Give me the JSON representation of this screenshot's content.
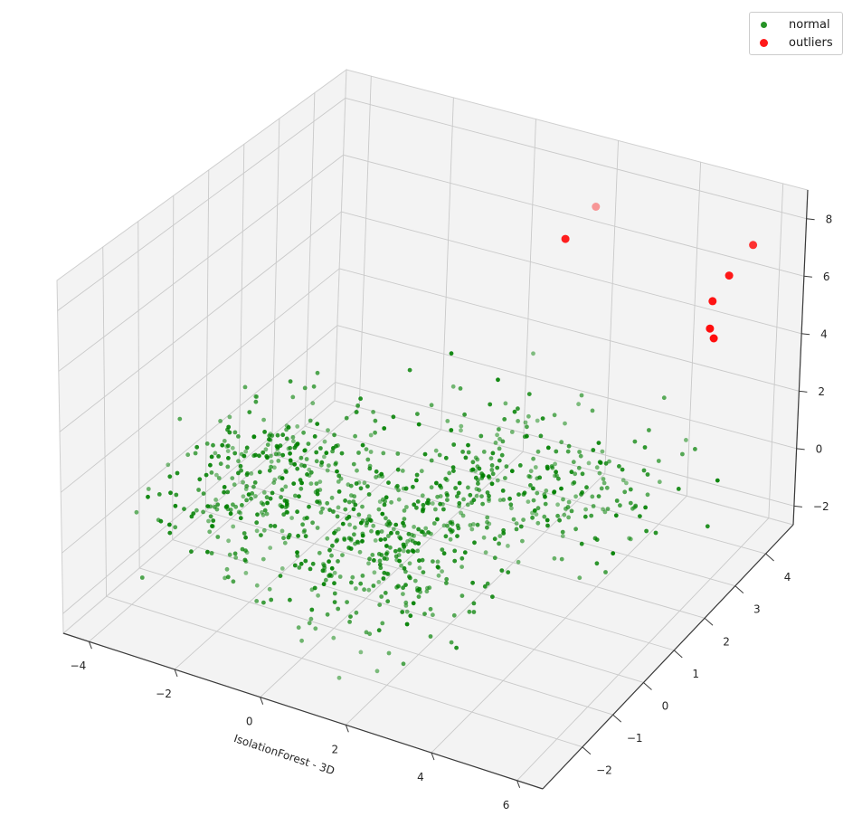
{
  "chart_data": {
    "type": "scatter",
    "subtype": "scatter3d",
    "title": "",
    "xlabel": "IsolationForest - 3D",
    "ylabel": "",
    "zlabel": "",
    "grid": true,
    "axes": {
      "x": {
        "label": "IsolationForest - 3D",
        "range": [
          -4.6,
          6.6
        ],
        "ticks": [
          -4,
          -2,
          0,
          2,
          4,
          6
        ]
      },
      "y": {
        "label": "",
        "range": [
          -3.3,
          4.9
        ],
        "ticks": [
          -2,
          -1,
          0,
          1,
          2,
          3,
          4
        ]
      },
      "z": {
        "label": "",
        "range": [
          -2.65,
          9.0
        ],
        "ticks": [
          -2,
          0,
          2,
          4,
          6,
          8
        ]
      }
    },
    "view": {
      "style": "matplotlib-3d",
      "elev_deg": 30,
      "azim_deg": -60
    },
    "legend": {
      "position": "upper right",
      "entries": [
        {
          "label": "normal",
          "color": "#008000"
        },
        {
          "label": "outliers",
          "color": "#ff0000"
        }
      ]
    },
    "series": [
      {
        "name": "normal",
        "color": "#008000",
        "marker_radius_px": 2.4,
        "count": 950,
        "distribution": {
          "kind": "gaussian_mixture",
          "seed": 1337,
          "clusters": [
            {
              "count": 300,
              "mean": [
                -2.6,
                0.4,
                0.2
              ],
              "std": [
                1.05,
                1.05,
                0.75
              ]
            },
            {
              "count": 380,
              "mean": [
                0.8,
                -0.4,
                -0.2
              ],
              "std": [
                1.2,
                1.1,
                0.8
              ]
            },
            {
              "count": 180,
              "mean": [
                1.4,
                2.2,
                0.2
              ],
              "std": [
                1.25,
                1.0,
                0.8
              ]
            },
            {
              "count": 90,
              "mean": [
                3.5,
                2.2,
                0.1
              ],
              "std": [
                1.1,
                0.9,
                0.7
              ]
            }
          ],
          "clip": {
            "x": [
              -4.5,
              6.5
            ],
            "y": [
              -3.15,
              4.8
            ],
            "z": [
              -2.55,
              8.9
            ]
          },
          "alpha_range": [
            0.45,
            0.95
          ]
        }
      },
      {
        "name": "outliers",
        "color": "#ff0000",
        "marker_radius_px": 4.5,
        "points": [
          {
            "x": 2.2,
            "y": 4.0,
            "z": 7.7,
            "alpha": 0.38
          },
          {
            "x": 1.5,
            "y": 4.0,
            "z": 6.3,
            "alpha": 0.88
          },
          {
            "x": 5.7,
            "y": 4.4,
            "z": 7.3,
            "alpha": 0.8
          },
          {
            "x": 5.3,
            "y": 4.2,
            "z": 6.3,
            "alpha": 0.9
          },
          {
            "x": 5.0,
            "y": 4.1,
            "z": 5.4,
            "alpha": 0.92
          },
          {
            "x": 5.0,
            "y": 4.05,
            "z": 4.5,
            "alpha": 0.95
          },
          {
            "x": 5.1,
            "y": 4.05,
            "z": 4.2,
            "alpha": 0.95
          }
        ]
      }
    ],
    "colors": {
      "background": "#ffffff",
      "pane_fill": "#f3f3f3",
      "pane_edge": "#cfcfcf",
      "grid_line": "#c9c9c9",
      "axis_line": "#3a3a3a",
      "tick_label": "#262626"
    }
  }
}
